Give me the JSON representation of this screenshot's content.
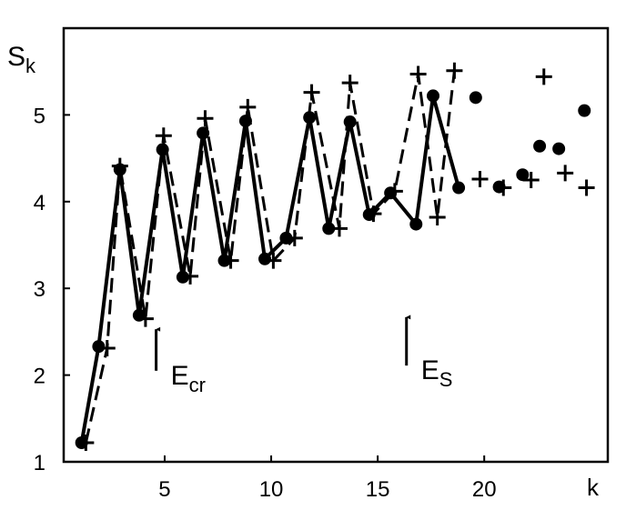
{
  "chart_data": {
    "type": "line",
    "ylabel": {
      "text": "S",
      "sub": "k"
    },
    "xlabel": "k",
    "xlim": [
      0.26,
      25.8
    ],
    "ylim": [
      1,
      6
    ],
    "xticks": [
      5,
      10,
      15,
      20
    ],
    "yticks": [
      1,
      2,
      3,
      4,
      5
    ],
    "series": [
      {
        "marker": "circle",
        "line": "solid",
        "color": "#000000",
        "x": [
          1.1,
          1.9,
          2.9,
          3.8,
          4.9,
          5.85,
          6.8,
          7.8,
          8.8,
          9.7,
          10.7,
          11.8,
          12.7,
          13.7,
          14.6,
          15.6,
          16.8,
          17.6,
          18.8
        ],
        "values": [
          1.22,
          2.33,
          4.37,
          2.69,
          4.6,
          3.13,
          4.79,
          3.32,
          4.93,
          3.34,
          3.58,
          4.97,
          3.69,
          4.92,
          3.85,
          4.1,
          3.74,
          5.22,
          4.16
        ]
      },
      {
        "marker": "circle",
        "line": "none",
        "color": "#000000",
        "x": [
          19.6,
          20.7,
          21.8,
          22.6,
          23.5,
          24.7
        ],
        "values": [
          5.2,
          4.17,
          4.31,
          4.64,
          4.61,
          5.05
        ]
      },
      {
        "marker": "plus",
        "line": "dashed",
        "color": "#000000",
        "x": [
          1.3,
          2.3,
          2.9,
          4.1,
          4.95,
          6.2,
          6.9,
          8.1,
          8.9,
          10.1,
          11.1,
          11.9,
          13.2,
          13.7,
          14.8,
          15.8,
          16.9,
          17.8,
          18.6
        ],
        "values": [
          1.22,
          2.31,
          4.41,
          2.65,
          4.76,
          3.14,
          4.96,
          3.32,
          5.09,
          3.32,
          3.58,
          5.26,
          3.69,
          5.37,
          3.86,
          4.12,
          5.47,
          3.82,
          5.51
        ]
      },
      {
        "marker": "plus",
        "line": "none",
        "color": "#000000",
        "x": [
          19.8,
          20.9,
          22.2,
          22.8,
          23.8,
          24.8
        ],
        "values": [
          4.26,
          4.16,
          4.25,
          5.44,
          4.33,
          4.16
        ]
      }
    ],
    "annotations": [
      {
        "text": "E",
        "sub": "cr",
        "x": 4.6,
        "y_from": 2.05,
        "y_to": 2.57
      },
      {
        "text": "E",
        "sub": "S",
        "x": 16.35,
        "y_from": 2.11,
        "y_to": 2.71
      }
    ]
  }
}
